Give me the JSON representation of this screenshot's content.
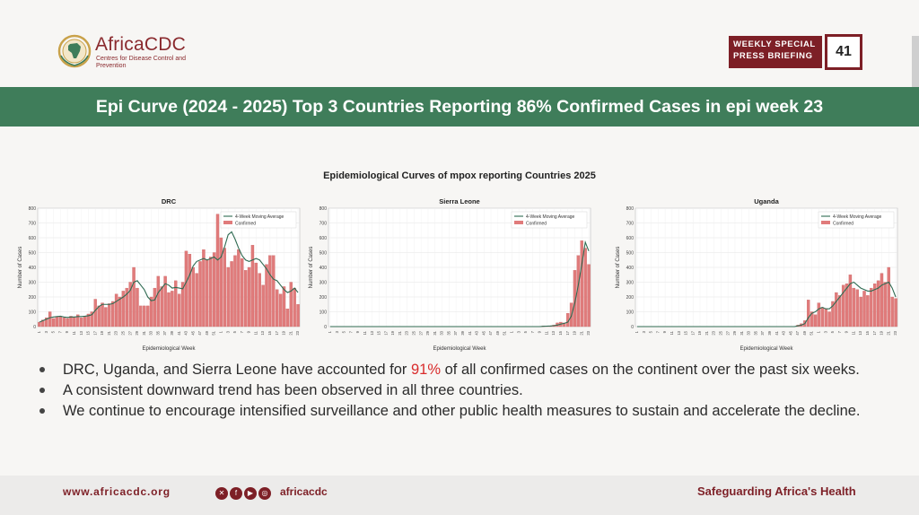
{
  "header": {
    "logo_name": "AfricaCDC",
    "logo_subtitle": "Centres for Disease Control and Prevention",
    "briefing_label": "WEEKLY SPECIAL PRESS BRIEFING",
    "briefing_number": "41"
  },
  "title": "Epi Curve (2024 - 2025) Top 3 Countries Reporting 86% Confirmed Cases in epi week 23",
  "charts_title": "Epidemiological Curves of mpox reporting Countries 2025",
  "colors": {
    "bar": "#e07b7b",
    "bar_stroke": "#c96262",
    "line": "#2f6b52",
    "band": "#3f7d5a",
    "brand": "#7d1f26"
  },
  "chart_data": [
    {
      "type": "bar",
      "title": "DRC",
      "xlabel": "Epidemiological Week",
      "ylabel": "Number of Cases",
      "ylim": [
        0,
        800
      ],
      "yticks": [
        0,
        100,
        200,
        300,
        400,
        500,
        600,
        700,
        800
      ],
      "legend": [
        "4-Week Moving Average",
        "Confirmed"
      ],
      "legend_position": "top-right",
      "x": [
        "1",
        "2",
        "3",
        "4",
        "5",
        "6",
        "7",
        "8",
        "9",
        "10",
        "11",
        "12",
        "13",
        "14",
        "15",
        "16",
        "17",
        "18",
        "19",
        "20",
        "21",
        "22",
        "23",
        "24",
        "25",
        "26",
        "27",
        "28",
        "29",
        "30",
        "31",
        "32",
        "33",
        "34",
        "35",
        "36",
        "37",
        "38",
        "39",
        "40",
        "41",
        "42",
        "43",
        "44",
        "45",
        "46",
        "47",
        "48",
        "49",
        "50",
        "51",
        "52",
        "1",
        "2",
        "3",
        "4",
        "5",
        "6",
        "7",
        "8",
        "9",
        "10",
        "11",
        "12",
        "13",
        "14",
        "15",
        "16",
        "17",
        "18",
        "19",
        "20",
        "21",
        "22",
        "23"
      ],
      "xtick_labels": [
        "1",
        "3",
        "5",
        "7",
        "9",
        "11",
        "13",
        "15",
        "17",
        "19",
        "21",
        "23",
        "25",
        "27",
        "29",
        "31",
        "33",
        "35",
        "37",
        "39",
        "41",
        "43",
        "45",
        "47",
        "49",
        "51",
        "1",
        "3",
        "5",
        "7",
        "9",
        "11",
        "13",
        "15",
        "17",
        "19",
        "21",
        "23"
      ],
      "series": [
        {
          "name": "Confirmed",
          "values": [
            30,
            45,
            60,
            100,
            55,
            65,
            70,
            60,
            55,
            70,
            65,
            80,
            60,
            70,
            85,
            100,
            185,
            140,
            160,
            130,
            155,
            170,
            220,
            200,
            240,
            260,
            300,
            400,
            260,
            140,
            140,
            140,
            200,
            260,
            340,
            270,
            340,
            230,
            240,
            310,
            220,
            300,
            510,
            490,
            400,
            360,
            440,
            520,
            450,
            470,
            500,
            760,
            600,
            530,
            400,
            440,
            480,
            520,
            460,
            380,
            400,
            550,
            430,
            360,
            280,
            420,
            480,
            480,
            250,
            220,
            270,
            120,
            300,
            260,
            150
          ]
        },
        {
          "name": "4-Week Moving Average",
          "type": "line",
          "values": [
            30,
            40,
            50,
            60,
            65,
            68,
            70,
            65,
            62,
            65,
            65,
            68,
            68,
            70,
            73,
            80,
            110,
            135,
            150,
            150,
            150,
            155,
            170,
            185,
            200,
            220,
            245,
            300,
            310,
            280,
            250,
            200,
            175,
            180,
            230,
            260,
            290,
            280,
            260,
            265,
            260,
            255,
            300,
            350,
            410,
            440,
            450,
            460,
            450,
            460,
            470,
            450,
            470,
            540,
            620,
            640,
            590,
            530,
            480,
            450,
            440,
            450,
            460,
            450,
            420,
            390,
            350,
            320,
            310,
            280,
            250,
            230,
            240,
            260,
            230
          ]
        }
      ]
    },
    {
      "type": "bar",
      "title": "Sierra Leone",
      "xlabel": "Epidemiological Week",
      "ylabel": "Number of Cases",
      "ylim": [
        0,
        800
      ],
      "yticks": [
        0,
        100,
        200,
        300,
        400,
        500,
        600,
        700,
        800
      ],
      "legend": [
        "4-Week Moving Average",
        "Confirmed"
      ],
      "legend_position": "top-right",
      "x": [
        "1",
        "2",
        "3",
        "4",
        "5",
        "6",
        "7",
        "8",
        "9",
        "10",
        "11",
        "12",
        "13",
        "14",
        "15",
        "16",
        "17",
        "18",
        "19",
        "20",
        "21",
        "22",
        "23",
        "24",
        "25",
        "26",
        "27",
        "28",
        "29",
        "30",
        "31",
        "32",
        "33",
        "34",
        "35",
        "36",
        "37",
        "38",
        "39",
        "40",
        "41",
        "42",
        "43",
        "44",
        "45",
        "46",
        "47",
        "48",
        "49",
        "50",
        "51",
        "52",
        "1",
        "2",
        "3",
        "4",
        "5",
        "6",
        "7",
        "8",
        "9",
        "10",
        "11",
        "12",
        "13",
        "14",
        "15",
        "16",
        "17",
        "18",
        "19",
        "20",
        "21",
        "22",
        "23"
      ],
      "xtick_labels": [
        "1",
        "3",
        "5",
        "7",
        "9",
        "11",
        "13",
        "15",
        "17",
        "19",
        "21",
        "23",
        "25",
        "27",
        "29",
        "31",
        "33",
        "35",
        "37",
        "39",
        "41",
        "43",
        "45",
        "47",
        "49",
        "51",
        "1",
        "3",
        "5",
        "7",
        "9",
        "11",
        "13",
        "15",
        "17",
        "19",
        "21",
        "23"
      ],
      "series": [
        {
          "name": "Confirmed",
          "values": [
            0,
            0,
            0,
            0,
            0,
            0,
            0,
            0,
            0,
            0,
            0,
            0,
            0,
            0,
            0,
            0,
            0,
            0,
            0,
            0,
            0,
            0,
            0,
            0,
            0,
            0,
            0,
            0,
            0,
            0,
            0,
            0,
            0,
            0,
            0,
            0,
            0,
            0,
            0,
            0,
            0,
            0,
            0,
            0,
            0,
            0,
            0,
            0,
            0,
            0,
            0,
            0,
            0,
            0,
            0,
            0,
            0,
            0,
            0,
            0,
            0,
            5,
            3,
            4,
            10,
            25,
            30,
            25,
            90,
            160,
            380,
            480,
            580,
            530,
            420
          ]
        },
        {
          "name": "4-Week Moving Average",
          "type": "line",
          "values": [
            0,
            0,
            0,
            0,
            0,
            0,
            0,
            0,
            0,
            0,
            0,
            0,
            0,
            0,
            0,
            0,
            0,
            0,
            0,
            0,
            0,
            0,
            0,
            0,
            0,
            0,
            0,
            0,
            0,
            0,
            0,
            0,
            0,
            0,
            0,
            0,
            0,
            0,
            0,
            0,
            0,
            0,
            0,
            0,
            0,
            0,
            0,
            0,
            0,
            0,
            0,
            0,
            0,
            0,
            0,
            0,
            0,
            0,
            0,
            0,
            0,
            2,
            3,
            4,
            6,
            10,
            17,
            22,
            30,
            70,
            160,
            280,
            420,
            570,
            510
          ]
        }
      ]
    },
    {
      "type": "bar",
      "title": "Uganda",
      "xlabel": "Epidemiological Week",
      "ylabel": "Number of Cases",
      "ylim": [
        0,
        800
      ],
      "yticks": [
        0,
        100,
        200,
        300,
        400,
        500,
        600,
        700,
        800
      ],
      "legend": [
        "4-Week Moving Average",
        "Confirmed"
      ],
      "legend_position": "top-right",
      "x": [
        "1",
        "2",
        "3",
        "4",
        "5",
        "6",
        "7",
        "8",
        "9",
        "10",
        "11",
        "12",
        "13",
        "14",
        "15",
        "16",
        "17",
        "18",
        "19",
        "20",
        "21",
        "22",
        "23",
        "24",
        "25",
        "26",
        "27",
        "28",
        "29",
        "30",
        "31",
        "32",
        "33",
        "34",
        "35",
        "36",
        "37",
        "38",
        "39",
        "40",
        "41",
        "42",
        "43",
        "44",
        "45",
        "46",
        "47",
        "48",
        "49",
        "50",
        "51",
        "52",
        "1",
        "2",
        "3",
        "4",
        "5",
        "6",
        "7",
        "8",
        "9",
        "10",
        "11",
        "12",
        "13",
        "14",
        "15",
        "16",
        "17",
        "18",
        "19",
        "20",
        "21",
        "22",
        "23"
      ],
      "xtick_labels": [
        "1",
        "3",
        "5",
        "7",
        "9",
        "11",
        "13",
        "15",
        "17",
        "19",
        "21",
        "23",
        "25",
        "27",
        "29",
        "31",
        "33",
        "35",
        "37",
        "39",
        "41",
        "43",
        "45",
        "47",
        "49",
        "51",
        "1",
        "3",
        "5",
        "7",
        "9",
        "11",
        "13",
        "15",
        "17",
        "19",
        "21",
        "23"
      ],
      "series": [
        {
          "name": "Confirmed",
          "values": [
            0,
            0,
            0,
            0,
            0,
            0,
            0,
            0,
            0,
            0,
            0,
            0,
            0,
            0,
            0,
            0,
            0,
            0,
            0,
            0,
            0,
            0,
            0,
            0,
            0,
            0,
            0,
            0,
            0,
            0,
            0,
            0,
            0,
            0,
            0,
            0,
            0,
            0,
            0,
            0,
            0,
            0,
            0,
            0,
            0,
            0,
            10,
            20,
            40,
            180,
            100,
            80,
            160,
            130,
            120,
            100,
            170,
            230,
            210,
            280,
            290,
            350,
            260,
            250,
            200,
            240,
            210,
            260,
            290,
            310,
            360,
            300,
            400,
            200,
            190
          ]
        },
        {
          "name": "4-Week Moving Average",
          "type": "line",
          "values": [
            0,
            0,
            0,
            0,
            0,
            0,
            0,
            0,
            0,
            0,
            0,
            0,
            0,
            0,
            0,
            0,
            0,
            0,
            0,
            0,
            0,
            0,
            0,
            0,
            0,
            0,
            0,
            0,
            0,
            0,
            0,
            0,
            0,
            0,
            0,
            0,
            0,
            0,
            0,
            0,
            0,
            0,
            0,
            0,
            0,
            0,
            5,
            10,
            20,
            60,
            90,
            100,
            120,
            130,
            120,
            120,
            140,
            170,
            200,
            230,
            260,
            290,
            300,
            280,
            260,
            250,
            240,
            240,
            250,
            260,
            280,
            290,
            300,
            260,
            200
          ]
        }
      ]
    }
  ],
  "bullets": [
    {
      "before": "DRC, Uganda, and Sierra Leone have accounted for ",
      "highlight": "91%",
      "after": " of all confirmed cases on the continent over the past six weeks."
    },
    {
      "text": "A consistent downward trend has been observed in all three countries."
    },
    {
      "text": "We continue to encourage intensified surveillance and other public health measures to sustain and accelerate the decline."
    }
  ],
  "footer": {
    "url": "www.africacdc.org",
    "social_icons": [
      "x-icon",
      "facebook-icon",
      "youtube-icon",
      "instagram-icon"
    ],
    "handle": "africacdc",
    "tagline": "Safeguarding Africa's Health"
  }
}
